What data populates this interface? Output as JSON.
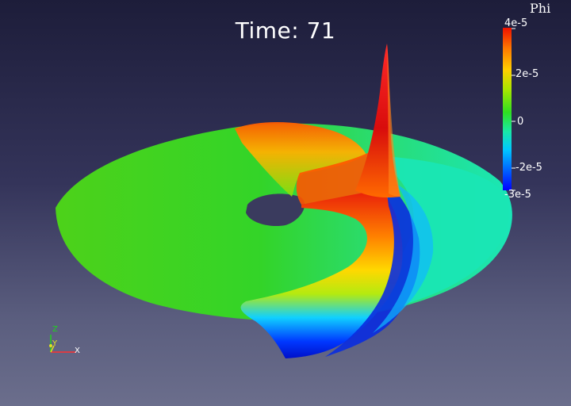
{
  "title": {
    "prefix": "Time: ",
    "value": "71"
  },
  "colorbar": {
    "variable": "Phi",
    "labels": {
      "max": "4e-5",
      "upper": "2e-5",
      "zero": "0",
      "lower": "-2e-5",
      "min": "-3e-5"
    },
    "range": [
      -3e-05,
      4e-05
    ],
    "colormap": [
      "#0000ff",
      "#00c8ff",
      "#19e8a8",
      "#2fe020",
      "#a8e600",
      "#ffd000",
      "#ff7a00",
      "#ee1100"
    ]
  },
  "axes": {
    "z": "Z",
    "y": "Y",
    "x": "X"
  },
  "colors": {
    "background_top": "#1d1d3a",
    "background_bottom": "#6b6e8c",
    "surface_green": "#33d21a",
    "surface_cyan": "#1ae6b4",
    "peak_red": "#e01010",
    "trough_blue": "#0018d8"
  }
}
